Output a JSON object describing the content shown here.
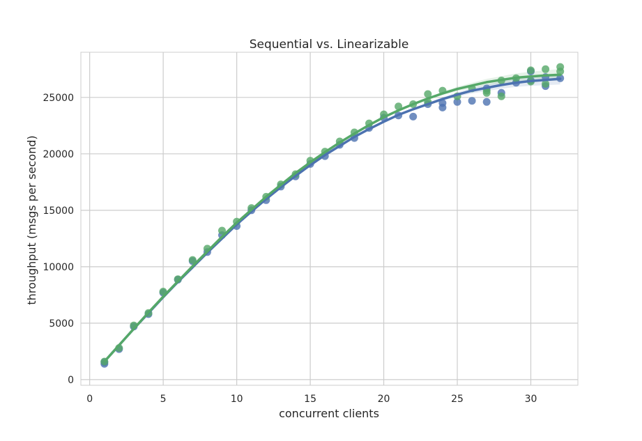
{
  "chart_data": {
    "type": "scatter",
    "title": "Sequential vs. Linearizable",
    "xlabel": "concurrent clients",
    "ylabel": "throughput (msgs per second)",
    "xlim": [
      -0.6,
      33.2
    ],
    "ylim": [
      -500,
      29000
    ],
    "xticks": [
      0,
      5,
      10,
      15,
      20,
      25,
      30
    ],
    "yticks": [
      0,
      5000,
      10000,
      15000,
      20000,
      25000
    ],
    "grid": true,
    "legend": "none",
    "series": [
      {
        "color": "#4c72b0",
        "points": [
          [
            1,
            1400
          ],
          [
            1,
            1550
          ],
          [
            2,
            2700
          ],
          [
            3,
            4700
          ],
          [
            4,
            5800
          ],
          [
            5,
            7700
          ],
          [
            6,
            8850
          ],
          [
            7,
            10500
          ],
          [
            8,
            11300
          ],
          [
            9,
            12800
          ],
          [
            10,
            13600
          ],
          [
            11,
            15000
          ],
          [
            12,
            15900
          ],
          [
            13,
            17100
          ],
          [
            14,
            18000
          ],
          [
            15,
            19100
          ],
          [
            16,
            19800
          ],
          [
            17,
            20800
          ],
          [
            18,
            21400
          ],
          [
            19,
            22300
          ],
          [
            20,
            23200
          ],
          [
            21,
            23400
          ],
          [
            22,
            23300
          ],
          [
            23,
            24400
          ],
          [
            24,
            24100
          ],
          [
            24,
            24500
          ],
          [
            25,
            24600
          ],
          [
            26,
            24700
          ],
          [
            27,
            24600
          ],
          [
            27,
            25800
          ],
          [
            28,
            25400
          ],
          [
            29,
            26300
          ],
          [
            30,
            26500
          ],
          [
            30,
            27300
          ],
          [
            31,
            26000
          ],
          [
            31,
            26800
          ],
          [
            32,
            26700
          ]
        ],
        "fit": [
          [
            1,
            1600
          ],
          [
            2,
            3050
          ],
          [
            3,
            4500
          ],
          [
            4,
            5900
          ],
          [
            5,
            7300
          ],
          [
            6,
            8650
          ],
          [
            7,
            9950
          ],
          [
            8,
            11250
          ],
          [
            9,
            12500
          ],
          [
            10,
            13750
          ],
          [
            11,
            14900
          ],
          [
            12,
            16000
          ],
          [
            13,
            17050
          ],
          [
            14,
            18050
          ],
          [
            15,
            19000
          ],
          [
            16,
            19900
          ],
          [
            17,
            20700
          ],
          [
            18,
            21500
          ],
          [
            19,
            22200
          ],
          [
            20,
            22850
          ],
          [
            21,
            23450
          ],
          [
            22,
            23950
          ],
          [
            23,
            24400
          ],
          [
            24,
            24850
          ],
          [
            25,
            25250
          ],
          [
            26,
            25600
          ],
          [
            27,
            25850
          ],
          [
            28,
            26100
          ],
          [
            29,
            26300
          ],
          [
            30,
            26450
          ],
          [
            31,
            26550
          ],
          [
            32,
            26650
          ]
        ]
      },
      {
        "color": "#55a868",
        "points": [
          [
            1,
            1600
          ],
          [
            2,
            2800
          ],
          [
            3,
            4800
          ],
          [
            4,
            5900
          ],
          [
            5,
            7800
          ],
          [
            6,
            8900
          ],
          [
            7,
            10600
          ],
          [
            8,
            11600
          ],
          [
            9,
            13200
          ],
          [
            10,
            14000
          ],
          [
            11,
            15200
          ],
          [
            12,
            16200
          ],
          [
            13,
            17300
          ],
          [
            14,
            18200
          ],
          [
            15,
            19400
          ],
          [
            16,
            20200
          ],
          [
            17,
            21100
          ],
          [
            18,
            21900
          ],
          [
            19,
            22700
          ],
          [
            20,
            23500
          ],
          [
            21,
            24200
          ],
          [
            22,
            24400
          ],
          [
            23,
            25300
          ],
          [
            23,
            24600
          ],
          [
            24,
            25600
          ],
          [
            25,
            25100
          ],
          [
            26,
            25800
          ],
          [
            27,
            25400
          ],
          [
            27,
            25600
          ],
          [
            28,
            26500
          ],
          [
            28,
            25100
          ],
          [
            29,
            26700
          ],
          [
            30,
            27400
          ],
          [
            30,
            26400
          ],
          [
            31,
            27500
          ],
          [
            31,
            26200
          ],
          [
            32,
            27700
          ],
          [
            32,
            27300
          ]
        ],
        "fit": [
          [
            1,
            1600
          ],
          [
            2,
            3050
          ],
          [
            3,
            4500
          ],
          [
            4,
            5950
          ],
          [
            5,
            7350
          ],
          [
            6,
            8700
          ],
          [
            7,
            10050
          ],
          [
            8,
            11350
          ],
          [
            9,
            12650
          ],
          [
            10,
            13900
          ],
          [
            11,
            15050
          ],
          [
            12,
            16200
          ],
          [
            13,
            17250
          ],
          [
            14,
            18300
          ],
          [
            15,
            19250
          ],
          [
            16,
            20150
          ],
          [
            17,
            21000
          ],
          [
            18,
            21800
          ],
          [
            19,
            22550
          ],
          [
            20,
            23250
          ],
          [
            21,
            23850
          ],
          [
            22,
            24400
          ],
          [
            23,
            24900
          ],
          [
            24,
            25350
          ],
          [
            25,
            25750
          ],
          [
            26,
            26050
          ],
          [
            27,
            26350
          ],
          [
            28,
            26550
          ],
          [
            29,
            26750
          ],
          [
            30,
            26850
          ],
          [
            31,
            26950
          ],
          [
            32,
            27000
          ]
        ]
      }
    ]
  }
}
